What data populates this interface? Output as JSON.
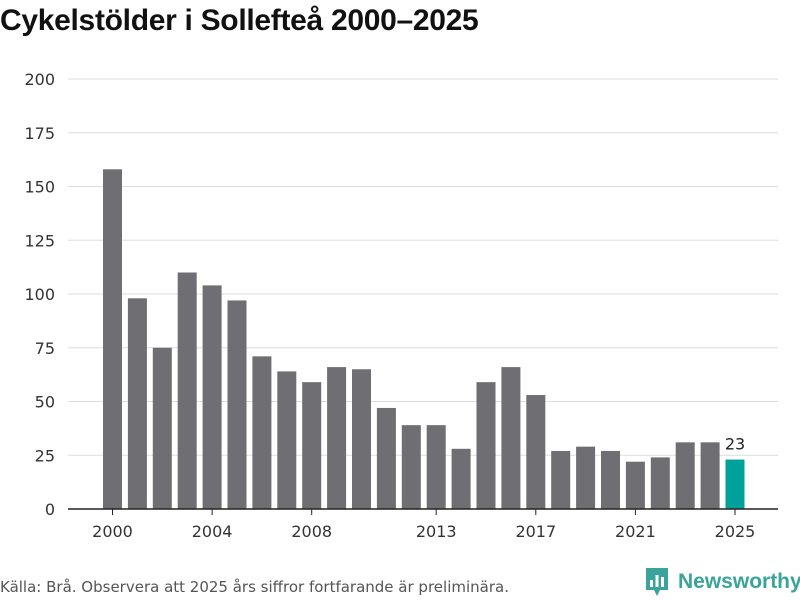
{
  "chart_data": {
    "type": "bar",
    "title": "Cykelstölder i Sollefteå 2000–2025",
    "xlabel": "",
    "ylabel": "",
    "ylim": [
      0,
      200
    ],
    "yticks": [
      0,
      25,
      50,
      75,
      100,
      125,
      150,
      175,
      200
    ],
    "xtick_labels": [
      "2000",
      "2004",
      "2008",
      "2013",
      "2017",
      "2021",
      "2025"
    ],
    "categories": [
      "2000",
      "2001",
      "2002",
      "2003",
      "2004",
      "2005",
      "2006",
      "2007",
      "2008",
      "2009",
      "2010",
      "2011",
      "2012",
      "2013",
      "2014",
      "2015",
      "2016",
      "2017",
      "2018",
      "2019",
      "2020",
      "2021",
      "2022",
      "2023",
      "2024",
      "2025"
    ],
    "values": [
      158,
      98,
      75,
      110,
      104,
      97,
      71,
      64,
      59,
      66,
      65,
      47,
      39,
      39,
      28,
      59,
      66,
      53,
      27,
      29,
      27,
      22,
      24,
      31,
      31,
      23
    ],
    "highlight": {
      "category": "2025",
      "label": "23"
    },
    "colors": {
      "bar": "#6e6e73",
      "highlight": "#00a19a",
      "grid": "#dddddd",
      "axis": "#222222"
    },
    "grid": true
  },
  "footer": {
    "source": "Källa: Brå. Observera att 2025 års siffror fortfarande är preliminära."
  },
  "brand": {
    "name": "Newsworthy",
    "icon": "bar-chart-icon",
    "color": "#3aa49b"
  }
}
